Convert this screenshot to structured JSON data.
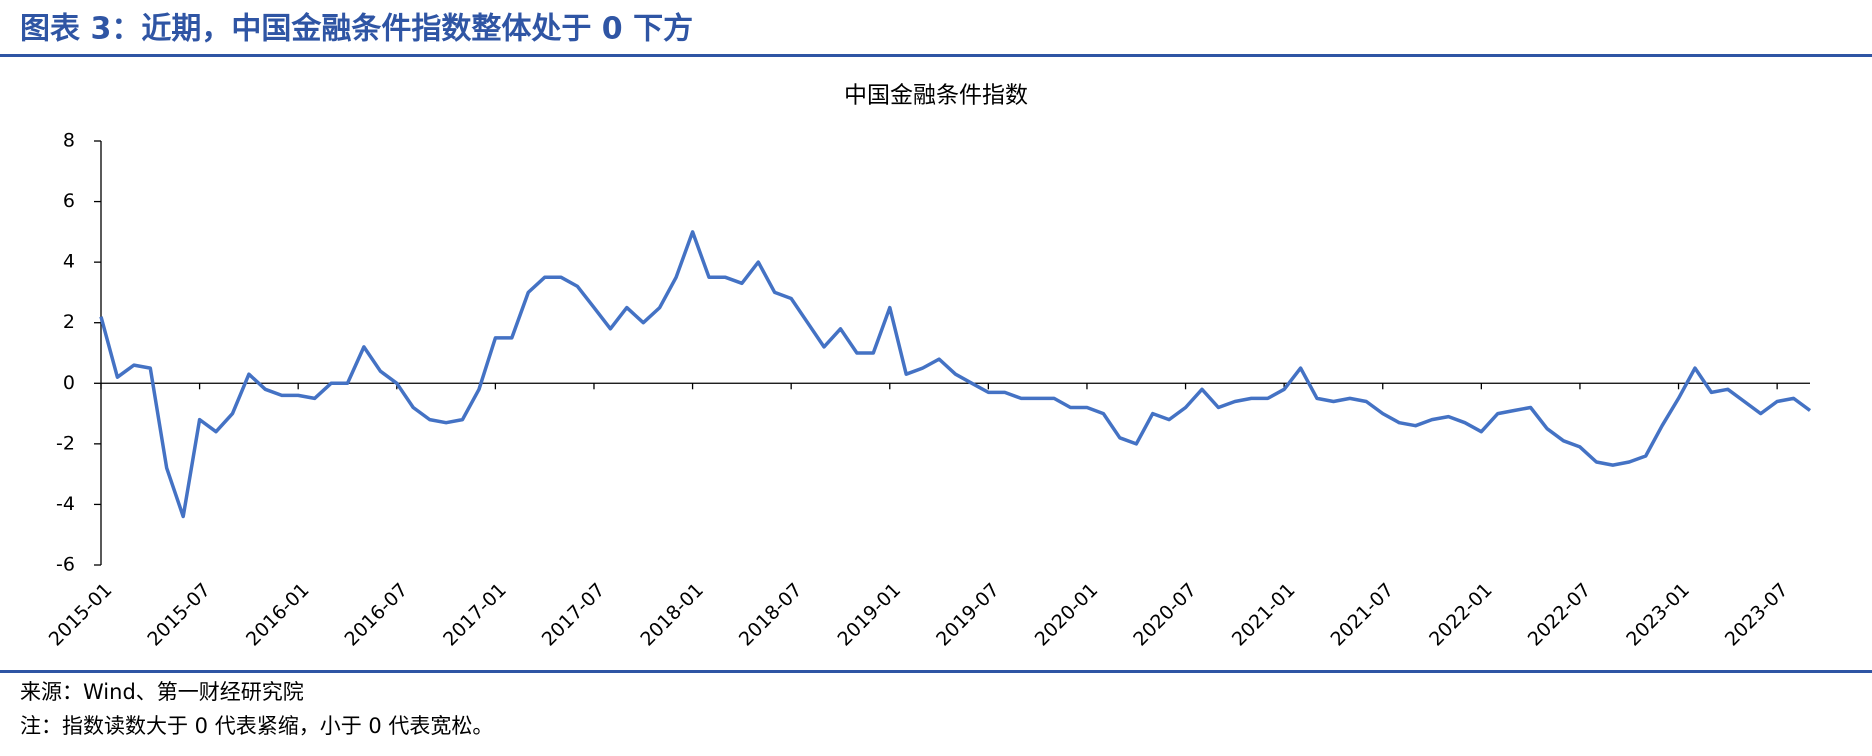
{
  "header": {
    "title": "图表 3：近期，中国金融条件指数整体处于 0 下方"
  },
  "chart_data": {
    "type": "line",
    "title": "中国金融条件指数",
    "x": [
      "2015-01",
      "2015-02",
      "2015-03",
      "2015-04",
      "2015-05",
      "2015-06",
      "2015-07",
      "2015-08",
      "2015-09",
      "2015-10",
      "2015-11",
      "2015-12",
      "2016-01",
      "2016-02",
      "2016-03",
      "2016-04",
      "2016-05",
      "2016-06",
      "2016-07",
      "2016-08",
      "2016-09",
      "2016-10",
      "2016-11",
      "2016-12",
      "2017-01",
      "2017-02",
      "2017-03",
      "2017-04",
      "2017-05",
      "2017-06",
      "2017-07",
      "2017-08",
      "2017-09",
      "2017-10",
      "2017-11",
      "2017-12",
      "2018-01",
      "2018-02",
      "2018-03",
      "2018-04",
      "2018-05",
      "2018-06",
      "2018-07",
      "2018-08",
      "2018-09",
      "2018-10",
      "2018-11",
      "2018-12",
      "2019-01",
      "2019-02",
      "2019-03",
      "2019-04",
      "2019-05",
      "2019-06",
      "2019-07",
      "2019-08",
      "2019-09",
      "2019-10",
      "2019-11",
      "2019-12",
      "2020-01",
      "2020-02",
      "2020-03",
      "2020-04",
      "2020-05",
      "2020-06",
      "2020-07",
      "2020-08",
      "2020-09",
      "2020-10",
      "2020-11",
      "2020-12",
      "2021-01",
      "2021-02",
      "2021-03",
      "2021-04",
      "2021-05",
      "2021-06",
      "2021-07",
      "2021-08",
      "2021-09",
      "2021-10",
      "2021-11",
      "2021-12",
      "2022-01",
      "2022-02",
      "2022-03",
      "2022-04",
      "2022-05",
      "2022-06",
      "2022-07",
      "2022-08",
      "2022-09",
      "2022-10",
      "2022-11",
      "2022-12",
      "2023-01",
      "2023-02",
      "2023-03",
      "2023-04",
      "2023-05",
      "2023-06",
      "2023-07",
      "2023-08",
      "2023-09"
    ],
    "series": [
      {
        "name": "中国金融条件指数",
        "color": "#4472c4",
        "values": [
          2.2,
          0.2,
          0.6,
          0.5,
          -2.8,
          -4.4,
          -1.2,
          -1.6,
          -1.0,
          0.3,
          -0.2,
          -0.4,
          -0.4,
          -0.5,
          0.0,
          0.0,
          1.2,
          0.4,
          0.0,
          -0.8,
          -1.2,
          -1.3,
          -1.2,
          -0.2,
          1.5,
          1.5,
          3.0,
          3.5,
          3.5,
          3.2,
          2.5,
          1.8,
          2.5,
          2.0,
          2.5,
          3.5,
          5.0,
          3.5,
          3.5,
          3.3,
          4.0,
          3.0,
          2.8,
          2.0,
          1.2,
          1.8,
          1.0,
          1.0,
          2.5,
          0.3,
          0.5,
          0.8,
          0.3,
          0.0,
          -0.3,
          -0.3,
          -0.5,
          -0.5,
          -0.5,
          -0.8,
          -0.8,
          -1.0,
          -1.8,
          -2.0,
          -1.0,
          -1.2,
          -0.8,
          -0.2,
          -0.8,
          -0.6,
          -0.5,
          -0.5,
          -0.2,
          0.5,
          -0.5,
          -0.6,
          -0.5,
          -0.6,
          -1.0,
          -1.3,
          -1.4,
          -1.2,
          -1.1,
          -1.3,
          -1.6,
          -1.0,
          -0.9,
          -0.8,
          -1.5,
          -1.9,
          -2.1,
          -2.6,
          -2.7,
          -2.6,
          -2.4,
          -1.4,
          -0.5,
          0.5,
          -0.3,
          -0.2,
          -0.6,
          -1.0,
          -0.6,
          -0.5,
          -0.9
        ]
      }
    ],
    "xlim": [
      "2015-01",
      "2023-09"
    ],
    "xticks": [
      "2015-01",
      "2015-07",
      "2016-01",
      "2016-07",
      "2017-01",
      "2017-07",
      "2018-01",
      "2018-07",
      "2019-01",
      "2019-07",
      "2020-01",
      "2020-07",
      "2021-01",
      "2021-07",
      "2022-01",
      "2022-07",
      "2023-01",
      "2023-07"
    ],
    "ylim": [
      -6,
      8
    ],
    "yticks": [
      -6,
      -4,
      -2,
      0,
      2,
      4,
      6,
      8
    ],
    "grid": false
  },
  "footer": {
    "source": "来源：Wind、第一财经研究院",
    "note": "注：指数读数大于 0 代表紧缩，小于 0 代表宽松。"
  }
}
